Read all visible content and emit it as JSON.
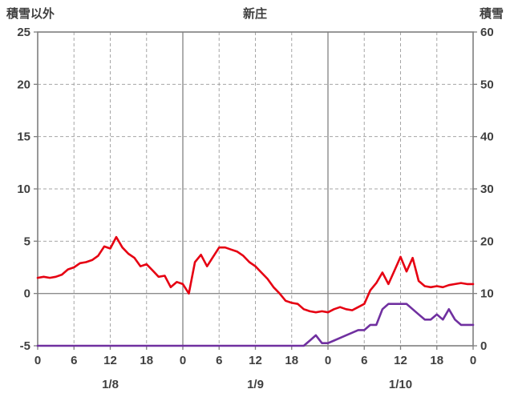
{
  "header": {
    "left_axis_label": "積雪以外",
    "title": "新庄",
    "right_axis_label": "積雪"
  },
  "chart_data": {
    "type": "line",
    "title": "新庄",
    "x_axis": {
      "range_hours": [
        0,
        72
      ],
      "tick_interval_hours": 6,
      "tick_labels": [
        "0",
        "6",
        "12",
        "18",
        "0",
        "6",
        "12",
        "18",
        "0",
        "6",
        "12",
        "18",
        "0"
      ],
      "day_labels": [
        {
          "center_hour": 12,
          "label": "1/8"
        },
        {
          "center_hour": 36,
          "label": "1/9"
        },
        {
          "center_hour": 60,
          "label": "1/10"
        }
      ]
    },
    "left_axis": {
      "label": "積雪以外",
      "min": -5,
      "max": 25,
      "tick_step": 5,
      "ticks": [
        25,
        20,
        15,
        10,
        5,
        0,
        -5
      ]
    },
    "right_axis": {
      "label": "積雪",
      "min": 0,
      "max": 60,
      "tick_step": 10,
      "ticks": [
        60,
        50,
        40,
        30,
        20,
        10,
        0
      ]
    },
    "grid": {
      "vertical_dashed_every_hours": 6,
      "vertical_solid_every_hours": 24,
      "horizontal_dashed_left_values": [
        20,
        15,
        10,
        5
      ],
      "zero_line_left_value": 0,
      "frame_color": "#7f7f7f",
      "grid_color": "#a6a6a6",
      "solid_grid_color": "#8c8c8c"
    },
    "series": [
      {
        "name": "積雪以外",
        "axis": "left",
        "color": "#e60012",
        "start_hour": 0,
        "step_hours": 1,
        "values": [
          1.5,
          1.6,
          1.5,
          1.6,
          1.8,
          2.3,
          2.5,
          2.9,
          3.0,
          3.2,
          3.6,
          4.5,
          4.3,
          5.4,
          4.4,
          3.8,
          3.4,
          2.6,
          2.8,
          2.2,
          1.6,
          1.7,
          0.6,
          1.1,
          0.9,
          0.0,
          3.0,
          3.7,
          2.6,
          3.5,
          4.4,
          4.4,
          4.2,
          4.0,
          3.6,
          3.0,
          2.6,
          2.0,
          1.4,
          0.6,
          0.0,
          -0.7,
          -0.9,
          -1.0,
          -1.5,
          -1.7,
          -1.8,
          -1.7,
          -1.8,
          -1.5,
          -1.3,
          -1.5,
          -1.6,
          -1.3,
          -1.0,
          0.3,
          1.0,
          2.0,
          0.9,
          2.2,
          3.5,
          2.1,
          3.4,
          1.2,
          0.7,
          0.6,
          0.7,
          0.6,
          0.8,
          0.9,
          1.0,
          0.9,
          0.9
        ]
      },
      {
        "name": "積雪",
        "axis": "right",
        "color": "#7030a0",
        "start_hour": 0,
        "step_hours": 1,
        "values": [
          0,
          0,
          0,
          0,
          0,
          0,
          0,
          0,
          0,
          0,
          0,
          0,
          0,
          0,
          0,
          0,
          0,
          0,
          0,
          0,
          0,
          0,
          0,
          0,
          0,
          0,
          0,
          0,
          0,
          0,
          0,
          0,
          0,
          0,
          0,
          0,
          0,
          0,
          0,
          0,
          0,
          0,
          0,
          0,
          0,
          1,
          2,
          0.5,
          0.5,
          1,
          1.5,
          2,
          2.5,
          3,
          3,
          4,
          4,
          7,
          8,
          8,
          8,
          8,
          7,
          6,
          5,
          5,
          6,
          5,
          7,
          5,
          4,
          4,
          4
        ]
      }
    ]
  }
}
